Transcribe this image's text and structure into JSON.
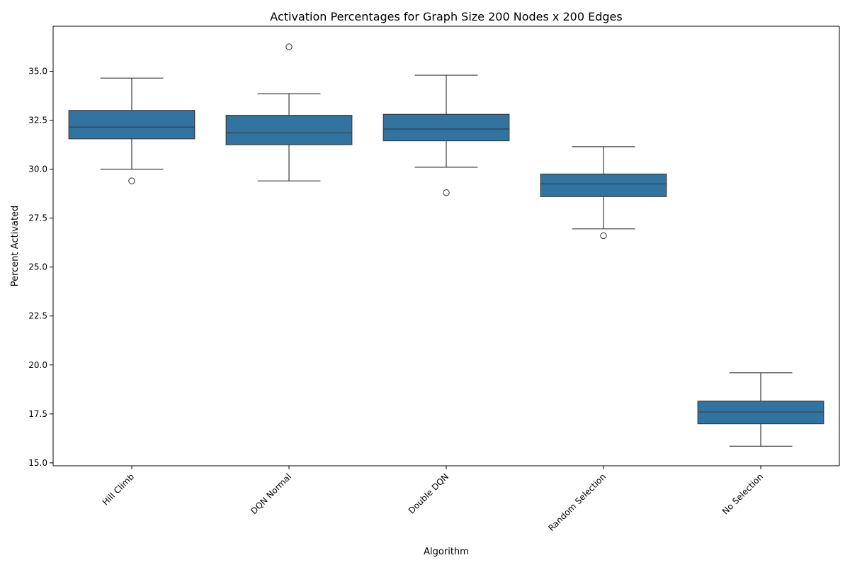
{
  "chart_data": {
    "type": "box",
    "title": "Activation Percentages for Graph Size 200 Nodes x 200 Edges",
    "xlabel": "Algorithm",
    "ylabel": "Percent Activated",
    "ylim": [
      14.85,
      37.3
    ],
    "yticks": [
      15.0,
      17.5,
      20.0,
      22.5,
      25.0,
      27.5,
      30.0,
      32.5,
      35.0
    ],
    "ytick_labels": [
      "15.0",
      "17.5",
      "20.0",
      "22.5",
      "25.0",
      "27.5",
      "30.0",
      "32.5",
      "35.0"
    ],
    "grid": false,
    "legend": "none",
    "box_color": "#3274a1",
    "line_color": "#3d3d3d",
    "categories": [
      "Hill Climb",
      "DQN Normal",
      "Double DQN",
      "Random Selection",
      "No Selection"
    ],
    "boxes": [
      {
        "whisker_low": 30.0,
        "q1": 31.55,
        "median": 32.15,
        "q3": 33.0,
        "whisker_high": 34.65,
        "outliers": [
          29.4
        ]
      },
      {
        "whisker_low": 29.4,
        "q1": 31.25,
        "median": 31.85,
        "q3": 32.75,
        "whisker_high": 33.85,
        "outliers": [
          36.25
        ]
      },
      {
        "whisker_low": 30.1,
        "q1": 31.45,
        "median": 32.05,
        "q3": 32.8,
        "whisker_high": 34.8,
        "outliers": [
          28.8
        ]
      },
      {
        "whisker_low": 26.95,
        "q1": 28.6,
        "median": 29.25,
        "q3": 29.75,
        "whisker_high": 31.15,
        "outliers": [
          26.6
        ]
      },
      {
        "whisker_low": 15.85,
        "q1": 17.0,
        "median": 17.6,
        "q3": 18.15,
        "whisker_high": 19.6,
        "outliers": []
      }
    ]
  }
}
